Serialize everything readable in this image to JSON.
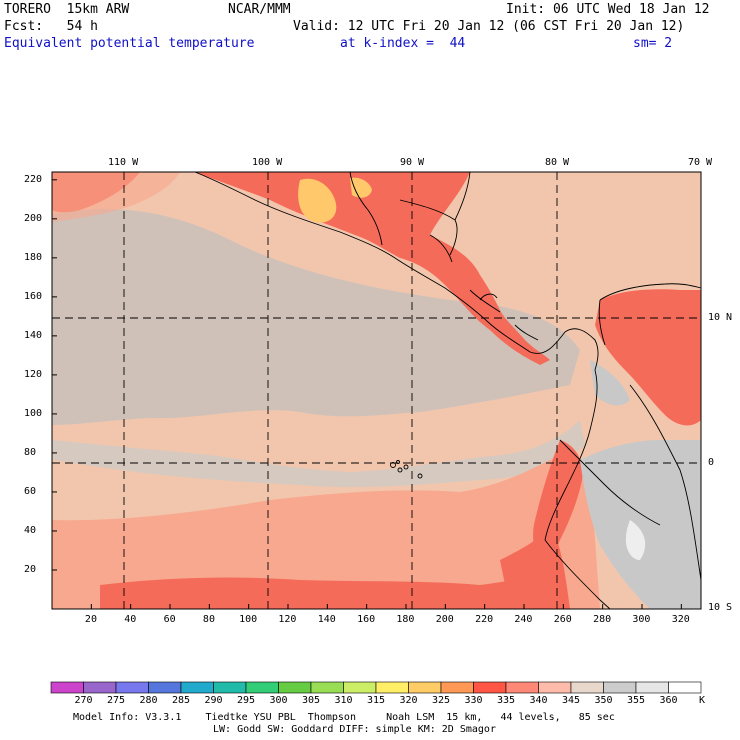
{
  "header": {
    "model": "TORERO  15km ARW",
    "org": "NCAR/MMM",
    "init": "Init: 06 UTC Wed 18 Jan 12",
    "fcst": "Fcst:   54 h",
    "valid": "Valid: 12 UTC Fri 20 Jan 12 (06 CST Fri 20 Jan 12)",
    "field": "Equivalent potential temperature",
    "level": "at k-index =  44",
    "smooth": "sm= 2"
  },
  "map": {
    "top_lon_labels": [
      "110 W",
      "100 W",
      "90 W",
      "80 W",
      "70 W"
    ],
    "right_lat_labels": [
      "10 N",
      "0",
      "10 S"
    ],
    "y_ticks": [
      "220",
      "200",
      "180",
      "160",
      "140",
      "120",
      "100",
      "80",
      "60",
      "40",
      "20"
    ],
    "x_ticks": [
      "20",
      "40",
      "60",
      "80",
      "100",
      "120",
      "140",
      "160",
      "180",
      "200",
      "220",
      "240",
      "260",
      "280",
      "300",
      "320"
    ]
  },
  "colorbar": {
    "labels": [
      "270",
      "275",
      "280",
      "285",
      "290",
      "295",
      "300",
      "305",
      "310",
      "315",
      "320",
      "325",
      "330",
      "335",
      "340",
      "345",
      "350",
      "355",
      "360"
    ],
    "unit": "K",
    "colors": [
      "#cc44cc",
      "#9966cc",
      "#7777ee",
      "#5577dd",
      "#22aacc",
      "#22bbaa",
      "#33cc77",
      "#66cc44",
      "#99dd55",
      "#ccee66",
      "#ffee66",
      "#ffcc66",
      "#ff9955",
      "#ff5544",
      "#ff8877",
      "#ffbbaa",
      "#e8d8cc",
      "#cccccc",
      "#e6e6e6",
      "#ffffff"
    ]
  },
  "footer": {
    "line1": "Model Info: V3.3.1    Tiedtke YSU PBL  Thompson     Noah LSM  15 km,   44 levels,   85 sec",
    "line2": "LW: Godd SW: Goddard DIFF: simple KM: 2D Smagor"
  }
}
